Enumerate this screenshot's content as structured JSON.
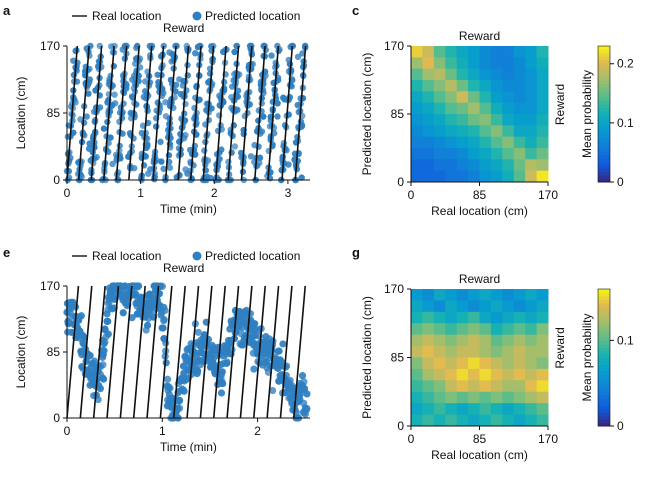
{
  "panels": {
    "a": "a",
    "c": "c",
    "e": "e",
    "g": "g"
  },
  "chart_data": [
    {
      "id": "a",
      "type": "scatter",
      "legend": {
        "line_label": "Real location",
        "point_label": "Predicted location",
        "placement": "top"
      },
      "annotation": "Reward",
      "xlabel": "Time (min)",
      "ylabel": "Location (cm)",
      "xlim": [
        0,
        3.3
      ],
      "ylim": [
        0,
        170
      ],
      "xticks": [
        0,
        1,
        2,
        3
      ],
      "yticks": [
        0,
        85,
        170
      ],
      "colors": {
        "points": "#2f7fc1",
        "line": "#111111"
      },
      "lap_starts": [
        0.0,
        0.16,
        0.33,
        0.5,
        0.67,
        0.84,
        1.01,
        1.17,
        1.34,
        1.51,
        1.68,
        1.85,
        2.02,
        2.19,
        2.37,
        2.55,
        2.73,
        2.92,
        3.1
      ],
      "lap_duration": 0.14,
      "predicted_noise_cm": 22
    },
    {
      "id": "c",
      "type": "heatmap",
      "annotation": "Reward",
      "xlabel": "Real location (cm)",
      "ylabel": "Predicted location (cm)",
      "right_label": "Reward",
      "xticks": [
        0,
        85,
        170
      ],
      "yticks": [
        0,
        85,
        170
      ],
      "colorbar": {
        "label": "Mean probability",
        "ticks": [
          0,
          0.1,
          0.2
        ],
        "range": [
          0,
          0.23
        ]
      },
      "z": [
        [
          0.21,
          0.19,
          0.14,
          0.12,
          0.1,
          0.09,
          0.07,
          0.06,
          0.06,
          0.08,
          0.09,
          0.12
        ],
        [
          0.17,
          0.2,
          0.16,
          0.13,
          0.11,
          0.09,
          0.07,
          0.06,
          0.06,
          0.07,
          0.09,
          0.11
        ],
        [
          0.14,
          0.17,
          0.18,
          0.15,
          0.12,
          0.1,
          0.08,
          0.07,
          0.06,
          0.07,
          0.08,
          0.1
        ],
        [
          0.12,
          0.14,
          0.16,
          0.18,
          0.15,
          0.12,
          0.1,
          0.08,
          0.07,
          0.07,
          0.08,
          0.1
        ],
        [
          0.1,
          0.12,
          0.14,
          0.16,
          0.19,
          0.15,
          0.12,
          0.09,
          0.08,
          0.07,
          0.08,
          0.1
        ],
        [
          0.09,
          0.1,
          0.12,
          0.14,
          0.15,
          0.17,
          0.14,
          0.11,
          0.09,
          0.08,
          0.08,
          0.1
        ],
        [
          0.08,
          0.09,
          0.1,
          0.12,
          0.13,
          0.15,
          0.16,
          0.13,
          0.1,
          0.09,
          0.09,
          0.11
        ],
        [
          0.07,
          0.08,
          0.09,
          0.1,
          0.11,
          0.12,
          0.14,
          0.16,
          0.13,
          0.1,
          0.1,
          0.12
        ],
        [
          0.06,
          0.06,
          0.07,
          0.08,
          0.09,
          0.1,
          0.12,
          0.14,
          0.16,
          0.13,
          0.11,
          0.13
        ],
        [
          0.05,
          0.05,
          0.06,
          0.06,
          0.07,
          0.09,
          0.1,
          0.12,
          0.14,
          0.16,
          0.13,
          0.15
        ],
        [
          0.04,
          0.04,
          0.05,
          0.05,
          0.06,
          0.07,
          0.09,
          0.1,
          0.12,
          0.15,
          0.18,
          0.17
        ],
        [
          0.04,
          0.04,
          0.04,
          0.05,
          0.05,
          0.06,
          0.08,
          0.09,
          0.11,
          0.14,
          0.19,
          0.22
        ]
      ]
    },
    {
      "id": "e",
      "type": "scatter",
      "legend": {
        "line_label": "Real location",
        "point_label": "Predicted location",
        "placement": "top"
      },
      "annotation": "Reward",
      "xlabel": "Time (min)",
      "ylabel": "Location (cm)",
      "xlim": [
        0,
        2.55
      ],
      "ylim": [
        0,
        170
      ],
      "xticks": [
        0,
        1,
        2
      ],
      "yticks": [
        0,
        85,
        170
      ],
      "colors": {
        "points": "#2f7fc1",
        "line": "#111111"
      },
      "lap_starts": [
        0.0,
        0.14,
        0.28,
        0.42,
        0.56,
        0.7,
        0.84,
        0.98,
        1.12,
        1.26,
        1.4,
        1.54,
        1.68,
        1.82,
        1.96,
        2.1,
        2.24,
        2.38
      ],
      "lap_duration": 0.12,
      "pred_curve": [
        [
          0.0,
          140
        ],
        [
          0.12,
          120
        ],
        [
          0.22,
          65
        ],
        [
          0.35,
          50
        ],
        [
          0.45,
          150
        ],
        [
          0.5,
          170
        ],
        [
          0.62,
          160
        ],
        [
          0.72,
          165
        ],
        [
          0.8,
          140
        ],
        [
          0.88,
          150
        ],
        [
          0.95,
          160
        ],
        [
          1.02,
          120
        ],
        [
          1.06,
          40
        ],
        [
          1.1,
          5
        ],
        [
          1.15,
          10
        ],
        [
          1.22,
          60
        ],
        [
          1.32,
          80
        ],
        [
          1.45,
          85
        ],
        [
          1.55,
          75
        ],
        [
          1.62,
          60
        ],
        [
          1.72,
          110
        ],
        [
          1.82,
          125
        ],
        [
          1.9,
          115
        ],
        [
          1.98,
          100
        ],
        [
          2.05,
          90
        ],
        [
          2.12,
          85
        ],
        [
          2.2,
          75
        ],
        [
          2.3,
          45
        ],
        [
          2.38,
          20
        ],
        [
          2.45,
          25
        ],
        [
          2.52,
          30
        ]
      ],
      "predicted_noise_cm": 14
    },
    {
      "id": "g",
      "type": "heatmap",
      "annotation": "Reward",
      "xlabel": "Real location (cm)",
      "ylabel": "Predicted location (cm)",
      "right_label": "Reward",
      "xticks": [
        0,
        85,
        170
      ],
      "yticks": [
        0,
        85,
        170
      ],
      "colorbar": {
        "label": "Mean probability",
        "ticks": [
          0,
          0.1
        ],
        "range": [
          0,
          0.16
        ]
      },
      "z": [
        [
          0.06,
          0.05,
          0.07,
          0.06,
          0.05,
          0.06,
          0.07,
          0.06,
          0.05,
          0.06,
          0.07,
          0.06
        ],
        [
          0.07,
          0.06,
          0.05,
          0.07,
          0.06,
          0.05,
          0.06,
          0.07,
          0.06,
          0.05,
          0.06,
          0.07
        ],
        [
          0.08,
          0.09,
          0.08,
          0.07,
          0.08,
          0.09,
          0.07,
          0.06,
          0.07,
          0.08,
          0.07,
          0.08
        ],
        [
          0.1,
          0.11,
          0.1,
          0.09,
          0.1,
          0.11,
          0.1,
          0.08,
          0.09,
          0.1,
          0.09,
          0.11
        ],
        [
          0.12,
          0.13,
          0.12,
          0.11,
          0.12,
          0.13,
          0.12,
          0.1,
          0.11,
          0.12,
          0.11,
          0.12
        ],
        [
          0.13,
          0.14,
          0.13,
          0.12,
          0.13,
          0.13,
          0.12,
          0.11,
          0.12,
          0.13,
          0.12,
          0.12
        ],
        [
          0.11,
          0.13,
          0.14,
          0.13,
          0.14,
          0.15,
          0.14,
          0.13,
          0.12,
          0.13,
          0.12,
          0.11
        ],
        [
          0.1,
          0.12,
          0.13,
          0.14,
          0.15,
          0.14,
          0.15,
          0.14,
          0.13,
          0.14,
          0.13,
          0.14
        ],
        [
          0.09,
          0.1,
          0.11,
          0.13,
          0.14,
          0.13,
          0.14,
          0.13,
          0.12,
          0.12,
          0.14,
          0.15
        ],
        [
          0.08,
          0.09,
          0.1,
          0.11,
          0.1,
          0.11,
          0.1,
          0.11,
          0.1,
          0.11,
          0.12,
          0.13
        ],
        [
          0.07,
          0.08,
          0.09,
          0.08,
          0.07,
          0.08,
          0.09,
          0.08,
          0.07,
          0.08,
          0.09,
          0.1
        ],
        [
          0.08,
          0.09,
          0.08,
          0.09,
          0.08,
          0.07,
          0.08,
          0.09,
          0.08,
          0.07,
          0.08,
          0.09
        ]
      ]
    }
  ]
}
